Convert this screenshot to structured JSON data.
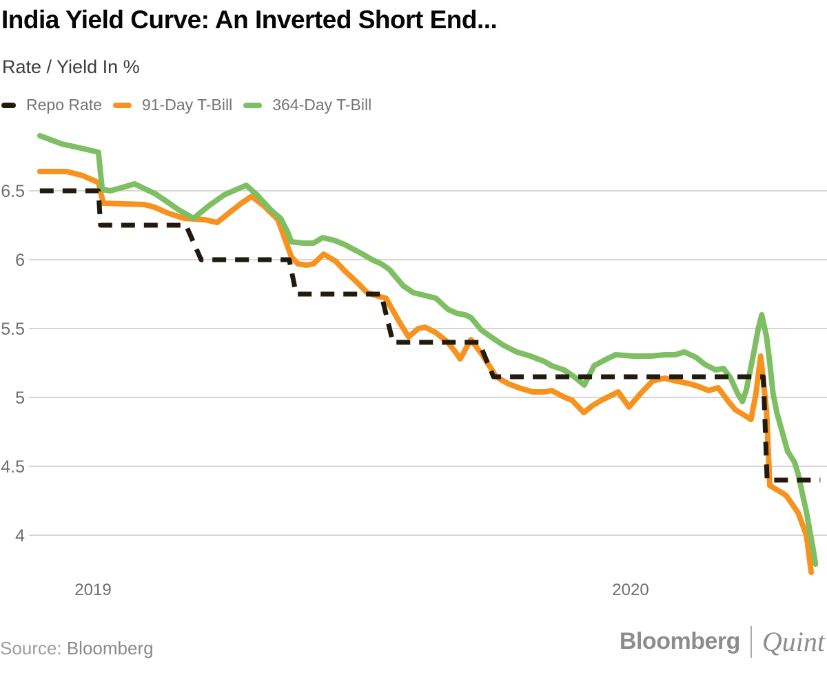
{
  "chart_data": {
    "type": "line",
    "title": "India Yield Curve: An Inverted Short End...",
    "ylabel": "Rate / Yield In %",
    "xlabel": "",
    "grid": "horizontal-only",
    "legend_position": "top-left",
    "x_axis": {
      "min": 2018.895,
      "max": 2020.36,
      "ticks": [
        {
          "label": "2019",
          "value": 2019
        },
        {
          "label": "2020",
          "value": 2020
        }
      ]
    },
    "y_axis": {
      "min": 3.7,
      "max": 6.95,
      "unit": "%",
      "ticks": [
        {
          "label": "6.5",
          "value": 6.5
        },
        {
          "label": "6",
          "value": 6.0
        },
        {
          "label": "5.5",
          "value": 5.5
        },
        {
          "label": "5",
          "value": 5.0
        },
        {
          "label": "4.5",
          "value": 4.5
        },
        {
          "label": "4",
          "value": 4.0
        }
      ]
    },
    "series": [
      {
        "name": "Repo Rate",
        "color": "#221a0d",
        "dashed": true,
        "points": [
          [
            2018.901,
            6.5
          ],
          [
            2019.01,
            6.5
          ],
          [
            2019.014,
            6.25
          ],
          [
            2019.173,
            6.25
          ],
          [
            2019.201,
            6.0
          ],
          [
            2019.365,
            6.0
          ],
          [
            2019.378,
            5.75
          ],
          [
            2019.536,
            5.75
          ],
          [
            2019.558,
            5.4
          ],
          [
            2019.718,
            5.4
          ],
          [
            2019.745,
            5.15
          ],
          [
            2020.247,
            5.15
          ],
          [
            2020.254,
            4.4
          ],
          [
            2020.353,
            4.4
          ]
        ]
      },
      {
        "name": "91-Day T-Bill",
        "color": "#f7921e",
        "dashed": false,
        "points": [
          [
            2018.901,
            6.64
          ],
          [
            2018.951,
            6.64
          ],
          [
            2018.981,
            6.61
          ],
          [
            2019.01,
            6.56
          ],
          [
            2019.019,
            6.41
          ],
          [
            2019.096,
            6.4
          ],
          [
            2019.115,
            6.38
          ],
          [
            2019.138,
            6.34
          ],
          [
            2019.169,
            6.3
          ],
          [
            2019.208,
            6.29
          ],
          [
            2019.231,
            6.27
          ],
          [
            2019.25,
            6.33
          ],
          [
            2019.276,
            6.41
          ],
          [
            2019.295,
            6.46
          ],
          [
            2019.318,
            6.39
          ],
          [
            2019.344,
            6.29
          ],
          [
            2019.356,
            6.16
          ],
          [
            2019.369,
            6.02
          ],
          [
            2019.381,
            5.97
          ],
          [
            2019.397,
            5.96
          ],
          [
            2019.41,
            5.97
          ],
          [
            2019.429,
            6.04
          ],
          [
            2019.451,
            5.99
          ],
          [
            2019.468,
            5.92
          ],
          [
            2019.49,
            5.84
          ],
          [
            2019.51,
            5.76
          ],
          [
            2019.535,
            5.73
          ],
          [
            2019.545,
            5.72
          ],
          [
            2019.558,
            5.63
          ],
          [
            2019.571,
            5.54
          ],
          [
            2019.587,
            5.44
          ],
          [
            2019.605,
            5.5
          ],
          [
            2019.618,
            5.51
          ],
          [
            2019.638,
            5.47
          ],
          [
            2019.66,
            5.4
          ],
          [
            2019.676,
            5.32
          ],
          [
            2019.683,
            5.28
          ],
          [
            2019.703,
            5.42
          ],
          [
            2019.724,
            5.31
          ],
          [
            2019.75,
            5.15
          ],
          [
            2019.772,
            5.1
          ],
          [
            2019.792,
            5.07
          ],
          [
            2019.818,
            5.04
          ],
          [
            2019.84,
            5.04
          ],
          [
            2019.853,
            5.05
          ],
          [
            2019.878,
            5.0
          ],
          [
            2019.891,
            4.98
          ],
          [
            2019.913,
            4.89
          ],
          [
            2019.929,
            4.94
          ],
          [
            2019.946,
            4.98
          ],
          [
            2019.977,
            5.04
          ],
          [
            2019.997,
            4.93
          ],
          [
            2020.019,
            5.03
          ],
          [
            2020.041,
            5.12
          ],
          [
            2020.064,
            5.14
          ],
          [
            2020.083,
            5.12
          ],
          [
            2020.109,
            5.1
          ],
          [
            2020.126,
            5.08
          ],
          [
            2020.145,
            5.05
          ],
          [
            2020.163,
            5.07
          ],
          [
            2020.182,
            4.97
          ],
          [
            2020.195,
            4.91
          ],
          [
            2020.212,
            4.87
          ],
          [
            2020.224,
            4.84
          ],
          [
            2020.233,
            5.02
          ],
          [
            2020.242,
            5.3
          ],
          [
            2020.253,
            4.9
          ],
          [
            2020.259,
            4.36
          ],
          [
            2020.285,
            4.3
          ],
          [
            2020.291,
            4.28
          ],
          [
            2020.312,
            4.16
          ],
          [
            2020.327,
            4.0
          ],
          [
            2020.336,
            3.73
          ]
        ]
      },
      {
        "name": "364-Day T-Bill",
        "color": "#7dbf62",
        "dashed": false,
        "points": [
          [
            2018.901,
            6.9
          ],
          [
            2018.942,
            6.84
          ],
          [
            2018.977,
            6.81
          ],
          [
            2019.01,
            6.78
          ],
          [
            2019.017,
            6.51
          ],
          [
            2019.032,
            6.5
          ],
          [
            2019.051,
            6.52
          ],
          [
            2019.077,
            6.55
          ],
          [
            2019.115,
            6.48
          ],
          [
            2019.138,
            6.42
          ],
          [
            2019.16,
            6.36
          ],
          [
            2019.187,
            6.3
          ],
          [
            2019.215,
            6.39
          ],
          [
            2019.244,
            6.47
          ],
          [
            2019.267,
            6.51
          ],
          [
            2019.285,
            6.54
          ],
          [
            2019.305,
            6.47
          ],
          [
            2019.331,
            6.36
          ],
          [
            2019.349,
            6.3
          ],
          [
            2019.362,
            6.2
          ],
          [
            2019.369,
            6.13
          ],
          [
            2019.391,
            6.12
          ],
          [
            2019.41,
            6.12
          ],
          [
            2019.427,
            6.16
          ],
          [
            2019.449,
            6.14
          ],
          [
            2019.468,
            6.11
          ],
          [
            2019.497,
            6.05
          ],
          [
            2019.519,
            6.0
          ],
          [
            2019.536,
            5.97
          ],
          [
            2019.551,
            5.93
          ],
          [
            2019.577,
            5.81
          ],
          [
            2019.596,
            5.76
          ],
          [
            2019.618,
            5.74
          ],
          [
            2019.638,
            5.72
          ],
          [
            2019.66,
            5.64
          ],
          [
            2019.677,
            5.61
          ],
          [
            2019.692,
            5.6
          ],
          [
            2019.703,
            5.58
          ],
          [
            2019.722,
            5.49
          ],
          [
            2019.74,
            5.44
          ],
          [
            2019.763,
            5.38
          ],
          [
            2019.788,
            5.33
          ],
          [
            2019.814,
            5.3
          ],
          [
            2019.84,
            5.26
          ],
          [
            2019.853,
            5.23
          ],
          [
            2019.876,
            5.2
          ],
          [
            2019.895,
            5.15
          ],
          [
            2019.914,
            5.09
          ],
          [
            2019.932,
            5.23
          ],
          [
            2019.951,
            5.27
          ],
          [
            2019.972,
            5.31
          ],
          [
            2020.006,
            5.3
          ],
          [
            2020.038,
            5.3
          ],
          [
            2020.064,
            5.31
          ],
          [
            2020.083,
            5.31
          ],
          [
            2020.1,
            5.33
          ],
          [
            2020.122,
            5.29
          ],
          [
            2020.138,
            5.24
          ],
          [
            2020.158,
            5.2
          ],
          [
            2020.173,
            5.21
          ],
          [
            2020.186,
            5.14
          ],
          [
            2020.199,
            5.03
          ],
          [
            2020.208,
            4.97
          ],
          [
            2020.215,
            5.05
          ],
          [
            2020.228,
            5.3
          ],
          [
            2020.237,
            5.49
          ],
          [
            2020.244,
            5.6
          ],
          [
            2020.253,
            5.44
          ],
          [
            2020.259,
            5.25
          ],
          [
            2020.265,
            5.03
          ],
          [
            2020.272,
            4.89
          ],
          [
            2020.292,
            4.61
          ],
          [
            2020.305,
            4.53
          ],
          [
            2020.312,
            4.44
          ],
          [
            2020.318,
            4.33
          ],
          [
            2020.327,
            4.17
          ],
          [
            2020.34,
            3.89
          ],
          [
            2020.344,
            3.79
          ]
        ]
      }
    ]
  },
  "footer": {
    "source_prefix": "Source: ",
    "source_value": "Bloomberg",
    "brand_primary": "Bloomberg",
    "brand_secondary": "Quint"
  },
  "colors": {
    "gridline": "#d6d6d6",
    "axis_text": "#6f6f6f",
    "title_text": "#060606",
    "subtitle_text": "#3d3d3d",
    "legend_text": "#757575",
    "background": "#ffffff"
  }
}
